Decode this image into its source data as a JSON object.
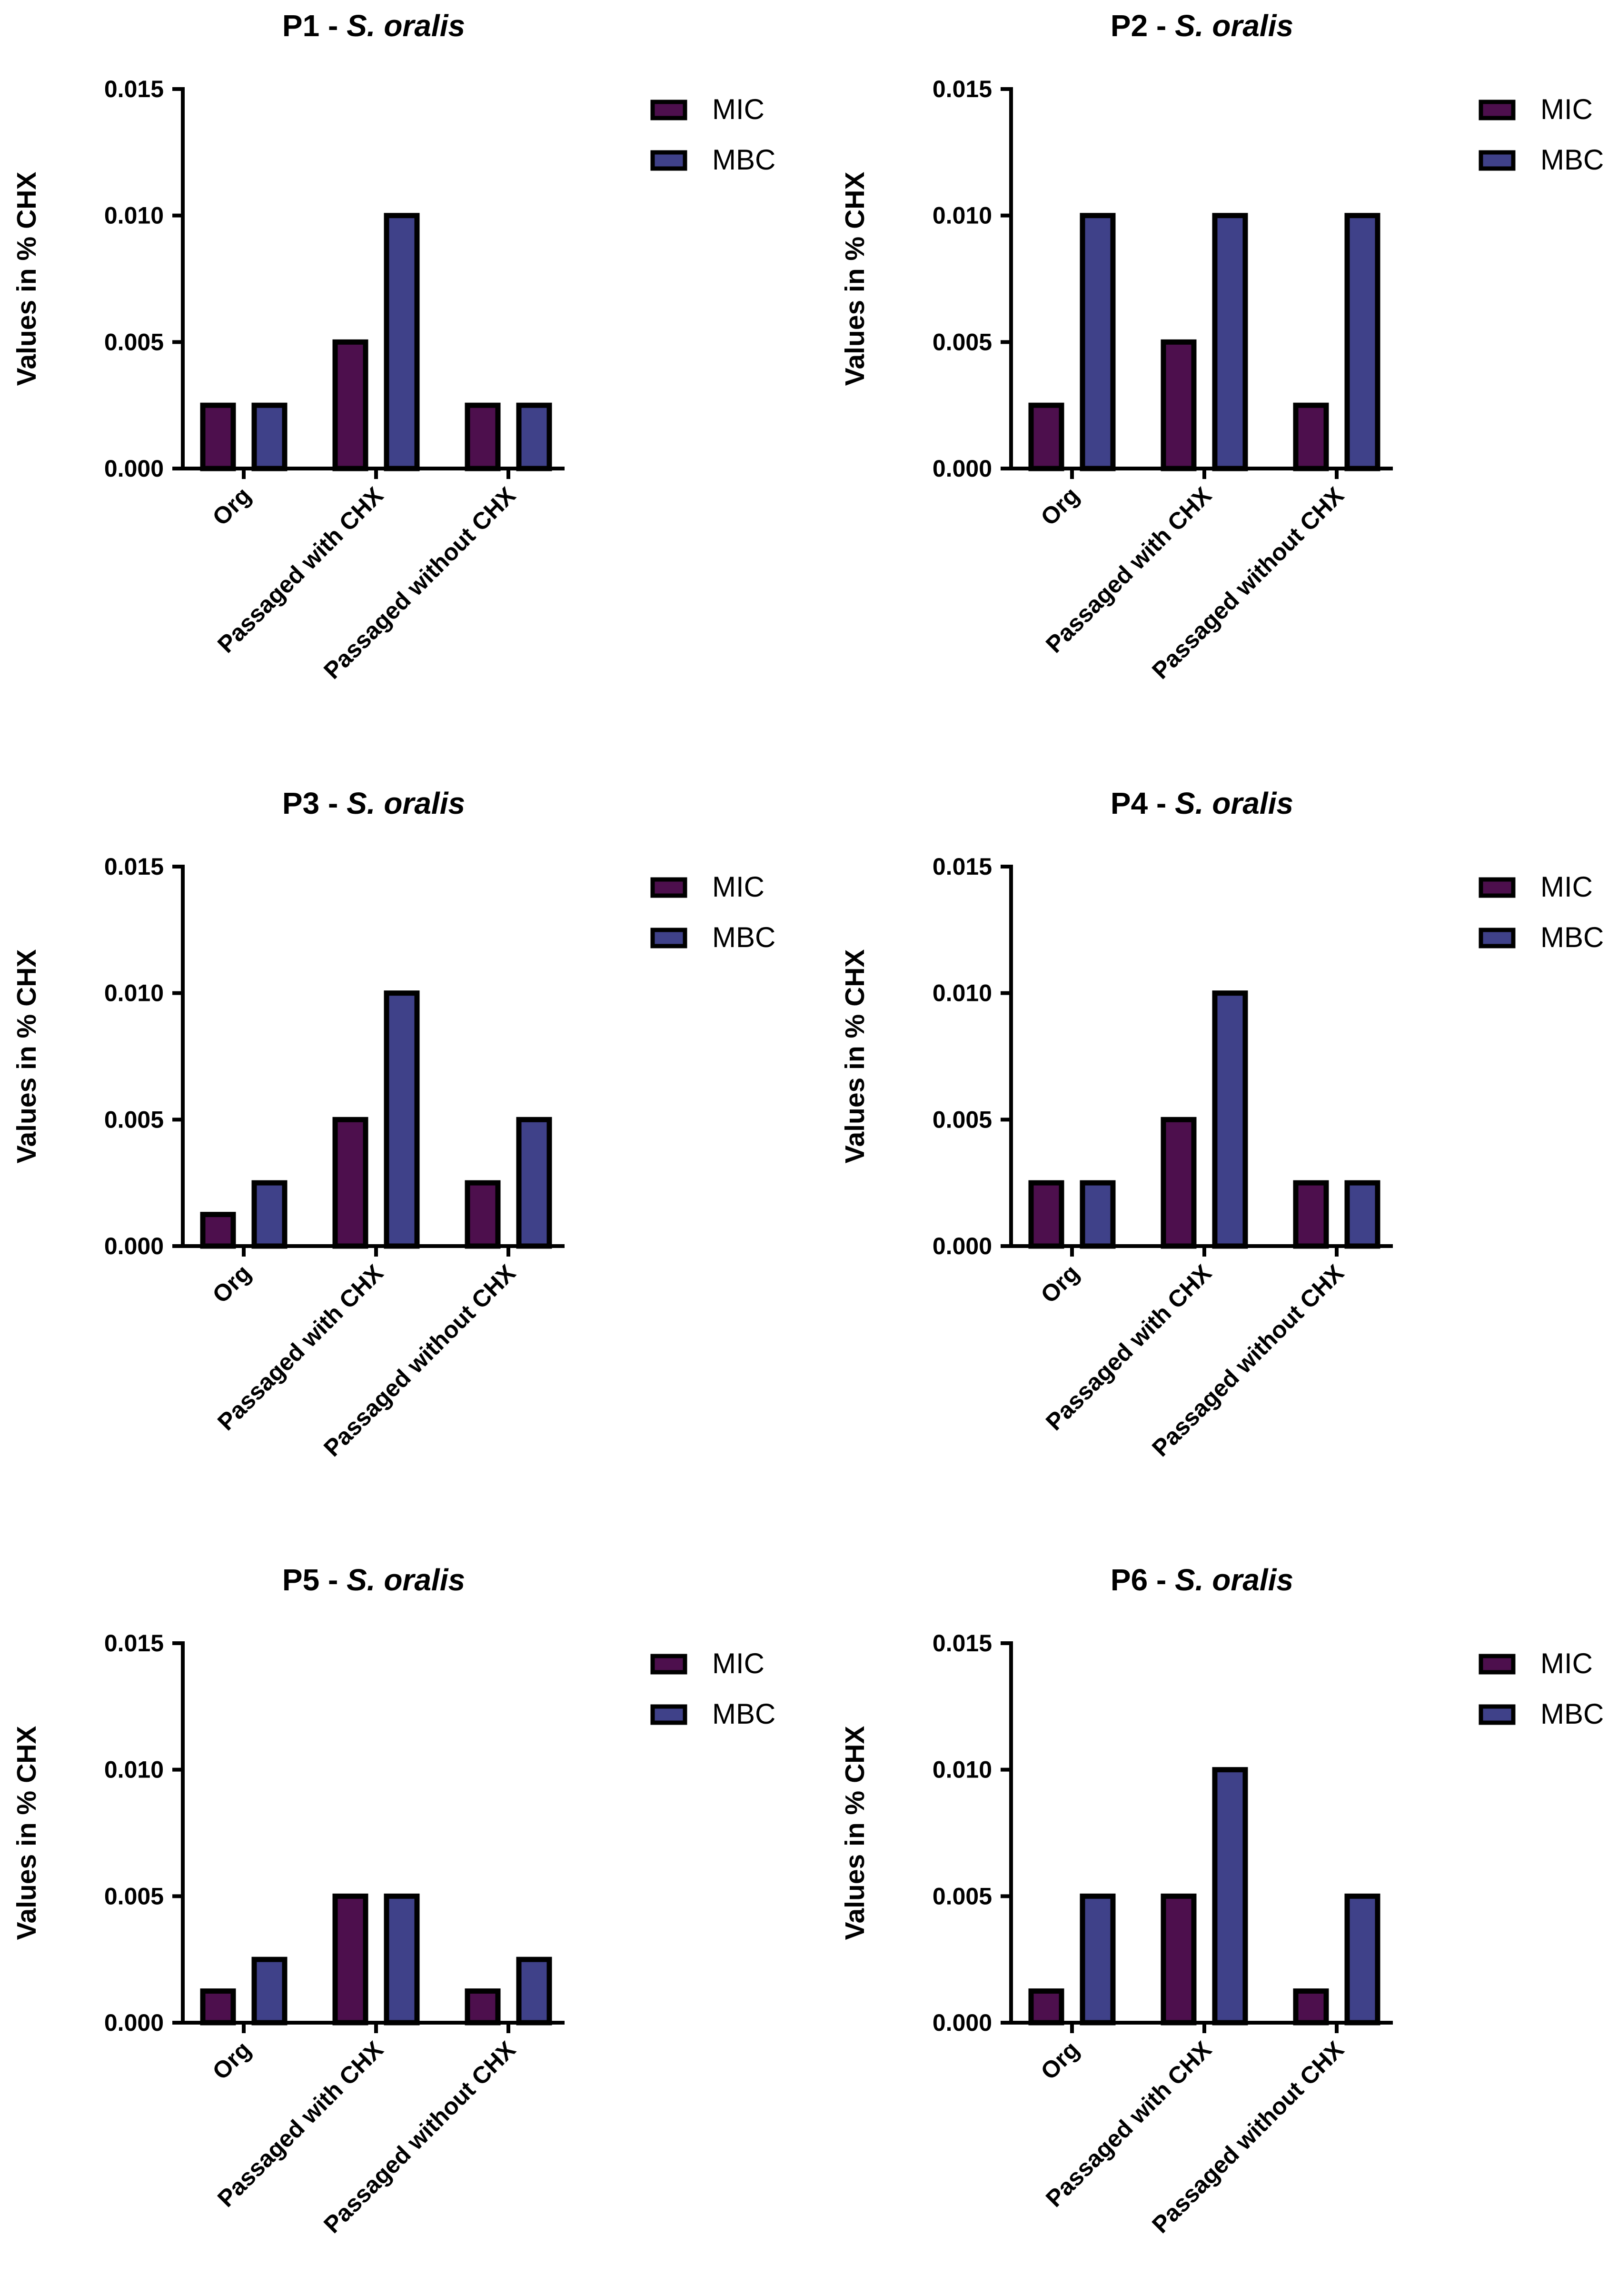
{
  "colors": {
    "MIC": "#4d0f4d",
    "MBC": "#3f4189",
    "stroke": "#000000"
  },
  "chart_data": [
    {
      "type": "bar",
      "title_prefix": "P1 - ",
      "title_species": "S. oralis",
      "ylabel": "Values in % CHX",
      "categories": [
        "Org",
        "Passaged with CHX",
        "Passaged without CHX"
      ],
      "yticks": [
        "0.000",
        "0.005",
        "0.010",
        "0.015"
      ],
      "ylim": [
        0,
        0.015
      ],
      "series": [
        {
          "name": "MIC",
          "values": [
            0.0025,
            0.005,
            0.0025
          ]
        },
        {
          "name": "MBC",
          "values": [
            0.0025,
            0.01,
            0.0025
          ]
        }
      ]
    },
    {
      "type": "bar",
      "title_prefix": "P2 - ",
      "title_species": "S. oralis",
      "ylabel": "Values in % CHX",
      "categories": [
        "Org",
        "Passaged with CHX",
        "Passaged without CHX"
      ],
      "yticks": [
        "0.000",
        "0.005",
        "0.010",
        "0.015"
      ],
      "ylim": [
        0,
        0.015
      ],
      "series": [
        {
          "name": "MIC",
          "values": [
            0.0025,
            0.005,
            0.0025
          ]
        },
        {
          "name": "MBC",
          "values": [
            0.01,
            0.01,
            0.01
          ]
        }
      ]
    },
    {
      "type": "bar",
      "title_prefix": "P3 - ",
      "title_species": "S. oralis",
      "ylabel": "Values in % CHX",
      "categories": [
        "Org",
        "Passaged with CHX",
        "Passaged without CHX"
      ],
      "yticks": [
        "0.000",
        "0.005",
        "0.010",
        "0.015"
      ],
      "ylim": [
        0,
        0.015
      ],
      "series": [
        {
          "name": "MIC",
          "values": [
            0.00125,
            0.005,
            0.0025
          ]
        },
        {
          "name": "MBC",
          "values": [
            0.0025,
            0.01,
            0.005
          ]
        }
      ]
    },
    {
      "type": "bar",
      "title_prefix": "P4 - ",
      "title_species": "S. oralis",
      "ylabel": "Values in % CHX",
      "categories": [
        "Org",
        "Passaged with CHX",
        "Passaged without CHX"
      ],
      "yticks": [
        "0.000",
        "0.005",
        "0.010",
        "0.015"
      ],
      "ylim": [
        0,
        0.015
      ],
      "series": [
        {
          "name": "MIC",
          "values": [
            0.0025,
            0.005,
            0.0025
          ]
        },
        {
          "name": "MBC",
          "values": [
            0.0025,
            0.01,
            0.0025
          ]
        }
      ]
    },
    {
      "type": "bar",
      "title_prefix": "P5 - ",
      "title_species": "S. oralis",
      "ylabel": "Values in % CHX",
      "categories": [
        "Org",
        "Passaged with CHX",
        "Passaged without CHX"
      ],
      "yticks": [
        "0.000",
        "0.005",
        "0.010",
        "0.015"
      ],
      "ylim": [
        0,
        0.015
      ],
      "series": [
        {
          "name": "MIC",
          "values": [
            0.00125,
            0.005,
            0.00125
          ]
        },
        {
          "name": "MBC",
          "values": [
            0.0025,
            0.005,
            0.0025
          ]
        }
      ]
    },
    {
      "type": "bar",
      "title_prefix": "P6 - ",
      "title_species": "S. oralis",
      "ylabel": "Values in % CHX",
      "categories": [
        "Org",
        "Passaged with CHX",
        "Passaged without CHX"
      ],
      "yticks": [
        "0.000",
        "0.005",
        "0.010",
        "0.015"
      ],
      "ylim": [
        0,
        0.015
      ],
      "series": [
        {
          "name": "MIC",
          "values": [
            0.00125,
            0.005,
            0.00125
          ]
        },
        {
          "name": "MBC",
          "values": [
            0.005,
            0.01,
            0.005
          ]
        }
      ]
    }
  ]
}
